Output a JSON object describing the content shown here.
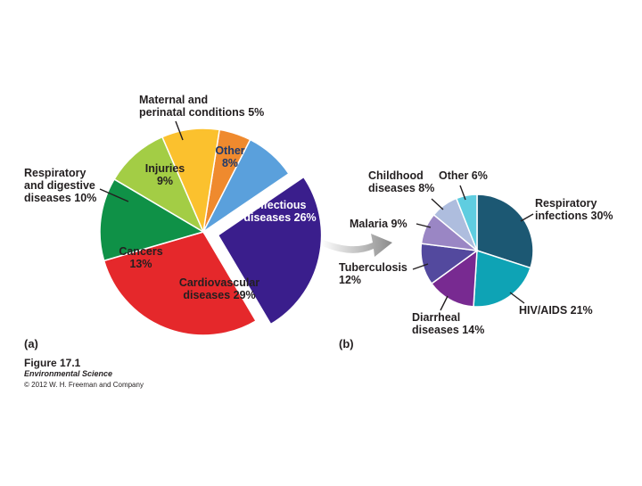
{
  "colors": {
    "maternal": "#ef8a2e",
    "other_a": "#5aa0dc",
    "infectious": "#3a1e8c",
    "cardiovascular": "#e5282b",
    "cancers": "#0f9147",
    "respiratory_digestive": "#a3cd45",
    "injuries": "#fbc12e",
    "respiratory_infections": "#1c5873",
    "hiv_aids": "#0ea3b5",
    "diarrheal": "#782a91",
    "tuberculosis": "#53499e",
    "malaria": "#9a86c4",
    "childhood": "#aebdde",
    "other_b": "#5fcde0",
    "arrow": "#8b8b8b",
    "leader": "#231f20"
  },
  "chart_data": [
    {
      "type": "pie",
      "panel_label": "(a)",
      "exploded": "Infectious diseases",
      "slices": [
        {
          "key": "maternal",
          "label": "Maternal and perinatal conditions",
          "lines": [
            "Maternal and",
            "perinatal conditions 5%"
          ],
          "value": 5,
          "pct_text": "5%",
          "color": "#ef8a2e"
        },
        {
          "key": "other",
          "label": "Other",
          "lines": [
            "Other",
            "8%"
          ],
          "value": 8,
          "pct_text": "8%",
          "color": "#5aa0dc"
        },
        {
          "key": "infectious",
          "label": "Infectious diseases",
          "lines": [
            "Infectious",
            "diseases 26%"
          ],
          "value": 26,
          "pct_text": "26%",
          "color": "#3a1e8c"
        },
        {
          "key": "cardiovascular",
          "label": "Cardiovascular diseases",
          "lines": [
            "Cardiovascular",
            "diseases 29%"
          ],
          "value": 29,
          "pct_text": "29%",
          "color": "#e5282b"
        },
        {
          "key": "cancers",
          "label": "Cancers",
          "lines": [
            "Cancers",
            "13%"
          ],
          "value": 13,
          "pct_text": "13%",
          "color": "#0f9147"
        },
        {
          "key": "respiratory_digestive",
          "label": "Respiratory and digestive diseases",
          "lines": [
            "Respiratory",
            "and digestive",
            "diseases 10%"
          ],
          "value": 10,
          "pct_text": "10%",
          "color": "#a3cd45"
        },
        {
          "key": "injuries",
          "label": "Injuries",
          "lines": [
            "Injuries",
            "9%"
          ],
          "value": 9,
          "pct_text": "9%",
          "color": "#fbc12e"
        }
      ]
    },
    {
      "type": "pie",
      "panel_label": "(b)",
      "slices": [
        {
          "key": "respiratory_infections",
          "label": "Respiratory infections",
          "lines": [
            "Respiratory",
            "infections 30%"
          ],
          "value": 30,
          "pct_text": "30%",
          "color": "#1c5873"
        },
        {
          "key": "hiv_aids",
          "label": "HIV/AIDS",
          "lines": [
            "HIV/AIDS 21%"
          ],
          "value": 21,
          "pct_text": "21%",
          "color": "#0ea3b5"
        },
        {
          "key": "diarrheal",
          "label": "Diarrheal diseases",
          "lines": [
            "Diarrheal",
            "diseases 14%"
          ],
          "value": 14,
          "pct_text": "14%",
          "color": "#782a91"
        },
        {
          "key": "tuberculosis",
          "label": "Tuberculosis",
          "lines": [
            "Tuberculosis",
            "12%"
          ],
          "value": 12,
          "pct_text": "12%",
          "color": "#53499e"
        },
        {
          "key": "malaria",
          "label": "Malaria",
          "lines": [
            "Malaria 9%"
          ],
          "value": 9,
          "pct_text": "9%",
          "color": "#9a86c4"
        },
        {
          "key": "childhood",
          "label": "Childhood diseases",
          "lines": [
            "Childhood",
            "diseases 8%"
          ],
          "value": 8,
          "pct_text": "8%",
          "color": "#aebdde"
        },
        {
          "key": "other",
          "label": "Other",
          "lines": [
            "Other 6%"
          ],
          "value": 6,
          "pct_text": "6%",
          "color": "#5fcde0"
        }
      ]
    }
  ],
  "caption": {
    "figure": "Figure 17.1",
    "book": "Environmental Science",
    "copyright": "© 2012 W. H. Freeman and Company"
  }
}
